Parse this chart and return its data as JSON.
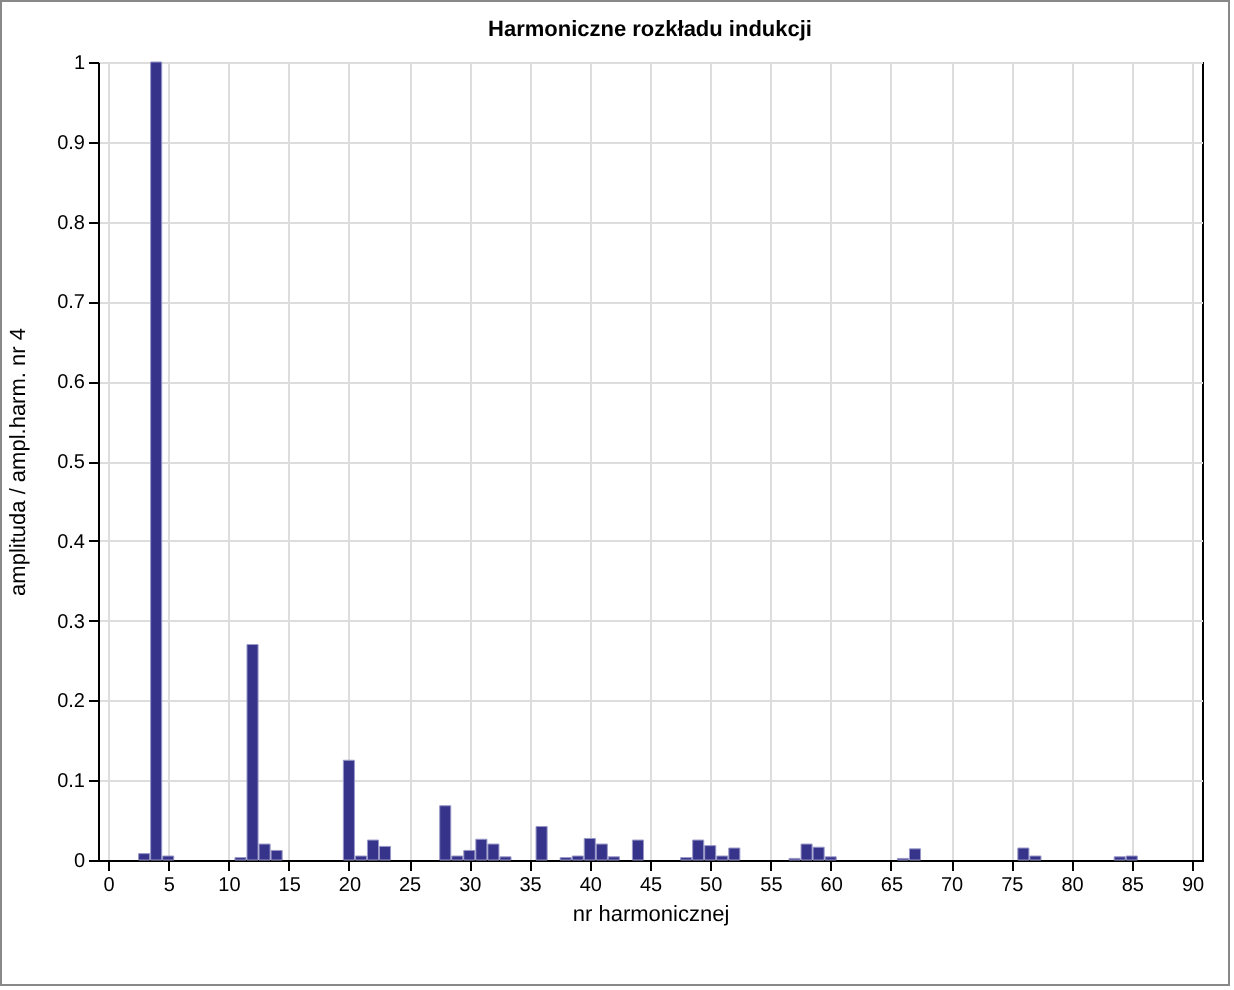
{
  "chart_data": {
    "type": "bar",
    "title": "Harmoniczne rozkładu indukcji",
    "xlabel": "nr harmonicznej",
    "ylabel": "amplituda / ampl.harm. nr 4",
    "x": [
      3,
      4,
      5,
      11,
      12,
      13,
      14,
      20,
      21,
      22,
      23,
      28,
      29,
      30,
      31,
      32,
      33,
      36,
      38,
      39,
      40,
      41,
      42,
      44,
      48,
      49,
      50,
      51,
      52,
      57,
      58,
      59,
      60,
      66,
      67,
      76,
      77,
      84,
      85
    ],
    "values": [
      0.008,
      1,
      0.005,
      0.003,
      0.27,
      0.02,
      0.012,
      0.125,
      0.005,
      0.025,
      0.017,
      0.068,
      0.005,
      0.012,
      0.026,
      0.02,
      0.004,
      0.042,
      0.003,
      0.005,
      0.027,
      0.02,
      0.004,
      0.025,
      0.003,
      0.025,
      0.018,
      0.005,
      0.015,
      0.002,
      0.02,
      0.016,
      0.004,
      0.002,
      0.014,
      0.015,
      0.005,
      0.004,
      0.005
    ],
    "color": "#35338a",
    "xlim": [
      0,
      90
    ],
    "xticks": [
      0,
      5,
      10,
      15,
      20,
      25,
      30,
      35,
      40,
      45,
      50,
      55,
      60,
      65,
      70,
      75,
      80,
      85,
      90
    ],
    "ylim": [
      0,
      1
    ],
    "yticks": [
      0,
      0.1,
      0.2,
      0.3,
      0.4,
      0.5,
      0.6,
      0.7,
      0.8,
      0.9,
      1
    ],
    "grid": true
  }
}
